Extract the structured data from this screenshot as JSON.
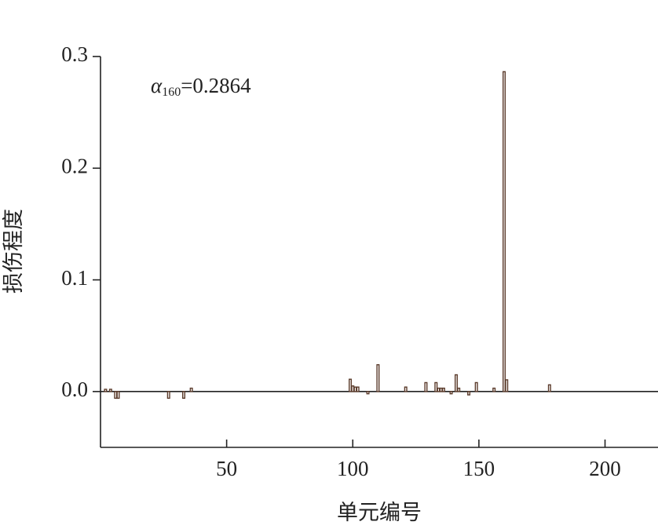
{
  "chart_data": {
    "type": "bar",
    "x_label": "单元编号",
    "y_label": "损伤程度",
    "annotation": {
      "symbol": "α",
      "subscript": "160",
      "text": "=0.2864"
    },
    "x": [
      2,
      4,
      6,
      7,
      27,
      33,
      36,
      99,
      100,
      101,
      102,
      106,
      110,
      121,
      129,
      133,
      134,
      135,
      136,
      139,
      141,
      142,
      146,
      149,
      156,
      160,
      161,
      178
    ],
    "values": [
      0.002,
      0.002,
      -0.006,
      -0.006,
      -0.006,
      -0.006,
      0.003,
      0.011,
      0.005,
      0.004,
      0.004,
      -0.002,
      0.024,
      0.004,
      0.008,
      0.008,
      0.003,
      0.003,
      0.003,
      -0.002,
      0.015,
      0.003,
      -0.003,
      0.008,
      0.003,
      0.2864,
      0.0105,
      0.006
    ],
    "color": "#5a3a2a",
    "xlim": [
      0,
      221
    ],
    "ylim": [
      -0.05,
      0.3
    ],
    "xticks": [
      50,
      100,
      150,
      200
    ],
    "yticks": [
      {
        "value": 0,
        "label": "0.0"
      },
      0.1,
      0.2,
      0.3
    ]
  }
}
